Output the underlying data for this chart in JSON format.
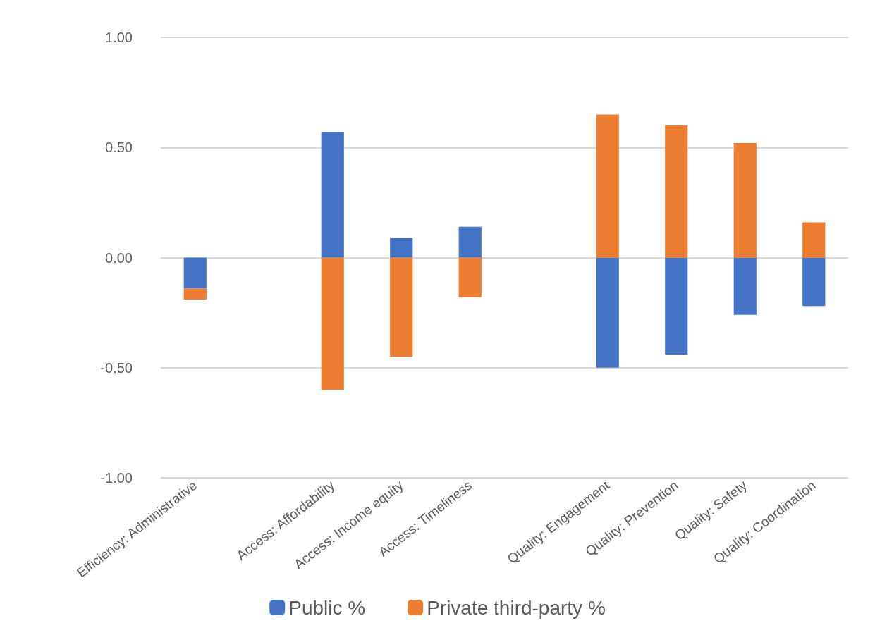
{
  "chart_data": {
    "type": "bar",
    "stacked": true,
    "categories": [
      "Efficiency: Administrative",
      null,
      "Access: Affordability",
      "Access: Income equity",
      "Access: Timeliness",
      null,
      "Quality: Engagement",
      "Quality: Prevention",
      "Quality: Safety",
      "Quality: Coordination"
    ],
    "series": [
      {
        "name": "Public %",
        "color": "#4472c4",
        "values": [
          -0.14,
          null,
          0.57,
          0.09,
          0.14,
          null,
          -0.5,
          -0.44,
          -0.26,
          -0.22
        ]
      },
      {
        "name": "Private third-party %",
        "color": "#ed7d31",
        "values": [
          -0.05,
          null,
          -0.6,
          -0.45,
          -0.18,
          null,
          0.65,
          0.6,
          0.52,
          0.16
        ]
      }
    ],
    "ylim": [
      -1,
      1
    ],
    "yticks": [
      {
        "value": -1,
        "label": "-1.00"
      },
      {
        "value": -0.5,
        "label": "-0.50"
      },
      {
        "value": 0,
        "label": "0.00"
      },
      {
        "value": 0.5,
        "label": "0.50"
      },
      {
        "value": 1,
        "label": "1.00"
      }
    ],
    "grid": "y",
    "legend": "bottom"
  }
}
